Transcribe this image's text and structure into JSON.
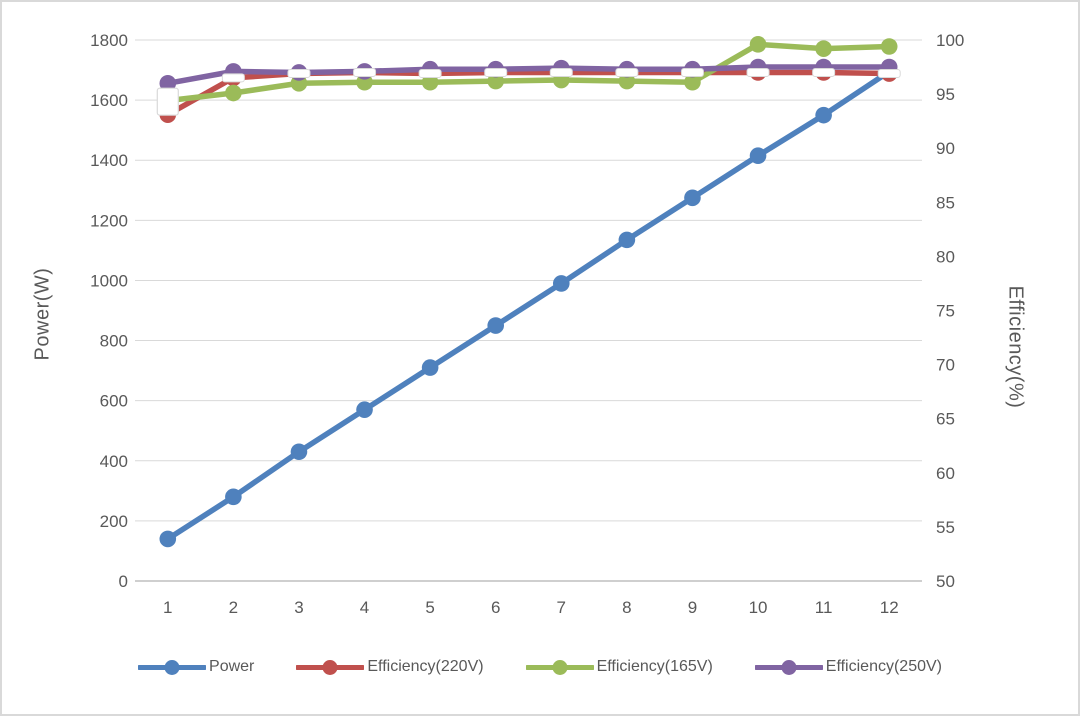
{
  "chart_data": {
    "type": "line",
    "title": "",
    "x": [
      1,
      2,
      3,
      4,
      5,
      6,
      7,
      8,
      9,
      10,
      11,
      12
    ],
    "series": [
      {
        "name": "Power",
        "axis": "left",
        "color": "#4F81BD",
        "values": [
          140,
          280,
          430,
          570,
          710,
          850,
          990,
          1135,
          1275,
          1415,
          1550,
          1695
        ]
      },
      {
        "name": "Efficiency(220V)",
        "axis": "right",
        "color": "#C0504D",
        "values": [
          93.1,
          96.5,
          96.9,
          97.0,
          96.9,
          97.0,
          97.0,
          97.0,
          97.0,
          97.0,
          97.0,
          96.9
        ]
      },
      {
        "name": "Efficiency(165V)",
        "axis": "right",
        "color": "#9BBB59",
        "values": [
          94.4,
          95.1,
          96.0,
          96.1,
          96.1,
          96.2,
          96.3,
          96.2,
          96.1,
          99.6,
          99.2,
          99.4
        ]
      },
      {
        "name": "Efficiency(250V)",
        "axis": "right",
        "color": "#8064A2",
        "values": [
          96.0,
          97.1,
          97.0,
          97.1,
          97.3,
          97.3,
          97.4,
          97.3,
          97.3,
          97.5,
          97.5,
          97.5
        ]
      }
    ],
    "left_axis": {
      "label": "Power(W)",
      "min": 0,
      "max": 1800,
      "step": 200,
      "tick_labels": [
        "1800",
        "1600",
        "1400",
        "1200",
        "1000",
        "800",
        "600",
        "400",
        "200",
        "0"
      ]
    },
    "right_axis": {
      "label": "Efficiency(%)",
      "min": 50,
      "max": 100,
      "step": 5,
      "tick_labels": [
        "100",
        "95",
        "90",
        "85",
        "80",
        "75",
        "70",
        "65",
        "60",
        "55",
        "50"
      ]
    },
    "x_axis": {
      "tick_labels": [
        "1",
        "2",
        "3",
        "4",
        "5",
        "6",
        "7",
        "8",
        "9",
        "10",
        "11",
        "12"
      ]
    },
    "grid": "horizontal",
    "legend_position": "bottom",
    "marker_overlays": {
      "description": "white dash markers over red/purple overlap, tall white box at first point",
      "dash_series": "Efficiency(220V)",
      "dash_points_x": [
        2,
        3,
        4,
        5,
        6,
        7,
        8,
        9,
        10,
        11,
        12
      ],
      "box_point": {
        "x": 1,
        "eff": 94.3
      }
    }
  },
  "colors": {
    "gridline": "#D9D9D9",
    "axis_line": "#BFBFBF",
    "tick_text": "#595959",
    "overlay_marker_fill": "#FFFFFF",
    "overlay_marker_border": "#D9D9D9"
  }
}
